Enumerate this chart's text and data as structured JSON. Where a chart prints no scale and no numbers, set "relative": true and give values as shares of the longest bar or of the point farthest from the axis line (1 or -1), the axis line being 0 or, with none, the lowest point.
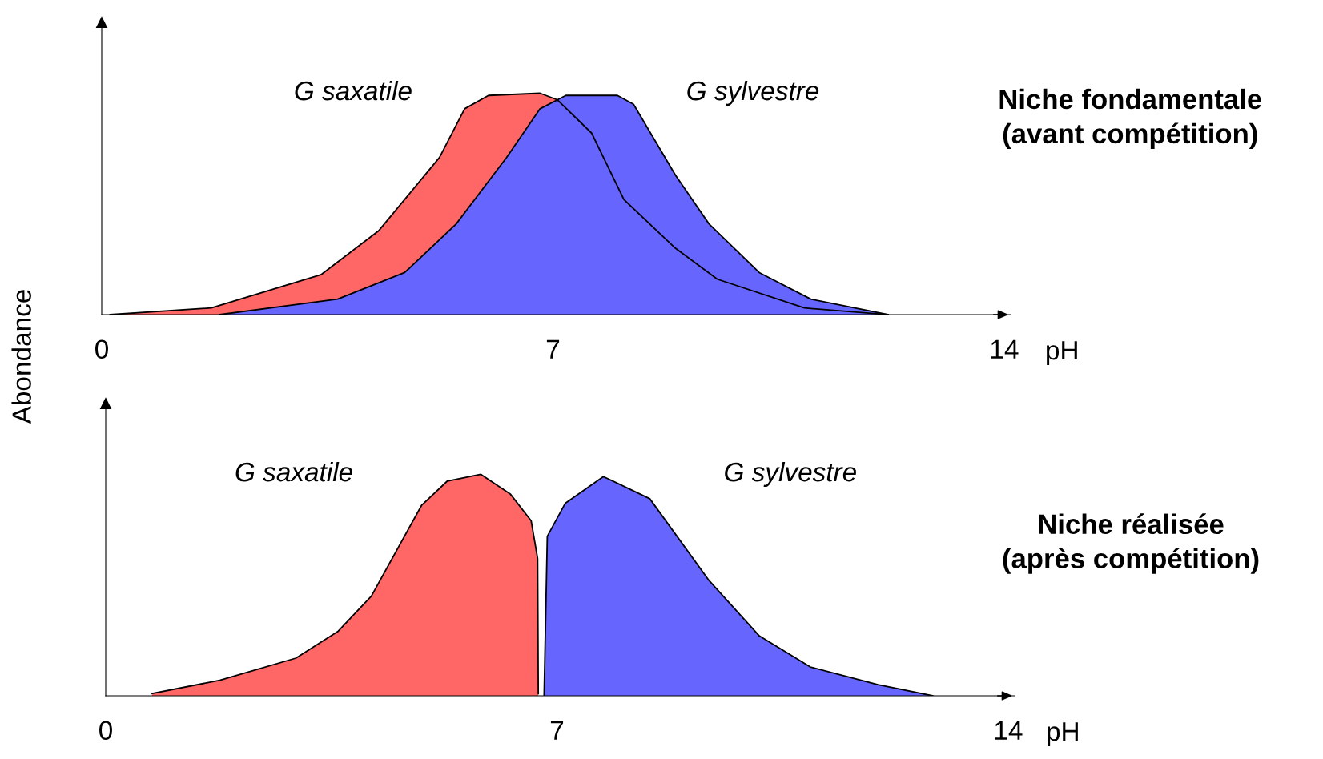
{
  "chart_data": [
    {
      "type": "area",
      "relative": true,
      "title": "Niche fondamentale\n(avant compétition)",
      "xlabel": "pH",
      "ylabel": "Abondance",
      "xlim": [
        0,
        14.1
      ],
      "xticks": [
        0,
        7,
        14
      ],
      "tick_labels": "x",
      "grid": false,
      "legend": false,
      "series": [
        {
          "name": "G saxatile",
          "color": "#ff6666",
          "x": [
            0.13,
            1.7,
            3.4,
            4.3,
            5.24,
            5.63,
            6.0,
            6.8,
            7.07,
            7.6,
            8.1,
            8.9,
            9.55,
            10.9,
            12.2
          ],
          "values": [
            0,
            0.03,
            0.18,
            0.38,
            0.71,
            0.93,
            0.99,
            1.0,
            0.97,
            0.82,
            0.52,
            0.3,
            0.16,
            0.03,
            0
          ]
        },
        {
          "name": "G sylvestre",
          "color": "#6666ff",
          "x": [
            1.83,
            3.66,
            4.7,
            5.5,
            6.28,
            6.8,
            7.2,
            8.0,
            8.25,
            8.9,
            9.42,
            10.2,
            11.0,
            12.2
          ],
          "values": [
            0,
            0.07,
            0.19,
            0.41,
            0.71,
            0.93,
            0.99,
            0.99,
            0.95,
            0.63,
            0.41,
            0.19,
            0.07,
            0
          ]
        }
      ]
    },
    {
      "type": "area",
      "relative": true,
      "title": "Niche réalisée\n(après compétition)",
      "xlabel": "pH",
      "xlim": [
        0,
        14.1
      ],
      "xticks": [
        0,
        7,
        14
      ],
      "tick_labels": "x",
      "grid": false,
      "legend": false,
      "series": [
        {
          "name": "G saxatile",
          "color": "#ff6666",
          "x": [
            0.72,
            1.77,
            2.95,
            3.6,
            4.12,
            4.9,
            5.3,
            5.82,
            6.28,
            6.6,
            6.7,
            6.71
          ],
          "values": [
            0.01,
            0.07,
            0.17,
            0.29,
            0.45,
            0.86,
            0.97,
            1.0,
            0.91,
            0.79,
            0.62,
            0.01
          ]
        },
        {
          "name": "G sylvestre",
          "color": "#6666ff",
          "x": [
            6.8,
            6.85,
            7.13,
            7.72,
            8.44,
            9.36,
            10.14,
            10.93,
            11.98,
            12.83
          ],
          "values": [
            0,
            0.72,
            0.87,
            0.99,
            0.89,
            0.52,
            0.27,
            0.13,
            0.05,
            0
          ]
        }
      ]
    }
  ]
}
